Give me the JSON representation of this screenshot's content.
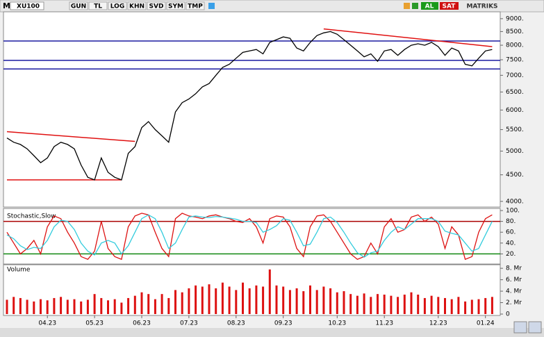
{
  "toolbar": {
    "symbol_prefix": "M",
    "symbol": "XU100",
    "buttons": [
      "GUN",
      "TL",
      "LOG",
      "KHN",
      "SVD",
      "SYM",
      "TMP"
    ],
    "buy": "AL",
    "sell": "SAT",
    "brand": "MATRIKS"
  },
  "chart_data": [
    {
      "type": "line",
      "log_scale": true,
      "categories": [
        null,
        null,
        null,
        null,
        null,
        null,
        "04.23",
        null,
        null,
        null,
        null,
        null,
        null,
        "05.23",
        null,
        null,
        null,
        null,
        null,
        null,
        "06.23",
        null,
        null,
        null,
        null,
        null,
        null,
        "07.23",
        null,
        null,
        null,
        null,
        null,
        null,
        "08.23",
        null,
        null,
        null,
        null,
        null,
        null,
        "09.23",
        null,
        null,
        null,
        null,
        null,
        null,
        null,
        "10.23",
        null,
        null,
        null,
        null,
        null,
        null,
        "11.23",
        null,
        null,
        null,
        null,
        null,
        null,
        null,
        "12.23",
        null,
        null,
        null,
        null,
        null,
        null,
        "01.24",
        null
      ],
      "series": [
        {
          "color": "#000000",
          "values": [
            5300,
            5200,
            5150,
            5050,
            4900,
            4750,
            4850,
            5100,
            5200,
            5150,
            5050,
            4700,
            4450,
            4400,
            4850,
            4550,
            4450,
            4400,
            4950,
            5100,
            5550,
            5700,
            5500,
            5350,
            5200,
            5950,
            6200,
            6300,
            6450,
            6650,
            6750,
            7000,
            7250,
            7350,
            7550,
            7750,
            7800,
            7850,
            7700,
            8100,
            8200,
            8300,
            8250,
            7900,
            7800,
            8100,
            8350,
            8450,
            8500,
            8400,
            8200,
            8000,
            7800,
            7600,
            7700,
            7450,
            7800,
            7850,
            7650,
            7850,
            8000,
            8050,
            8000,
            8100,
            7950,
            7650,
            7900,
            7800,
            7350,
            7300,
            7550,
            7800,
            7850
          ]
        }
      ],
      "ylim": [
        3900,
        9250
      ],
      "yticks": [
        {
          "value": 4000,
          "label": "4000."
        },
        {
          "value": 4500,
          "label": "4500."
        },
        {
          "value": 5000,
          "label": "5000."
        },
        {
          "value": 5500,
          "label": "5500."
        },
        {
          "value": 6000,
          "label": "6000."
        },
        {
          "value": 6500,
          "label": "6500."
        },
        {
          "value": 7000,
          "label": "7000."
        },
        {
          "value": 7500,
          "label": "7500."
        },
        {
          "value": 8000,
          "label": "8000."
        },
        {
          "value": 8500,
          "label": "8500."
        },
        {
          "value": 9000,
          "label": "9000."
        }
      ],
      "levels": [
        {
          "value": 8150,
          "color": "#1a1aa0"
        },
        {
          "value": 7480,
          "color": "#1a1aa0"
        },
        {
          "value": 7200,
          "color": "#1a1aa0"
        }
      ],
      "trendlines": [
        {
          "points": [
            [
              0,
              5450
            ],
            [
              19,
              5220
            ]
          ],
          "color": "#e01010"
        },
        {
          "points": [
            [
              0,
              4400
            ],
            [
              17,
              4400
            ]
          ],
          "color": "#e01010"
        },
        {
          "points": [
            [
              47,
              8600
            ],
            [
              72,
              7950
            ]
          ],
          "color": "#e01010"
        }
      ]
    },
    {
      "type": "line",
      "title": "Stochastic,Slow",
      "series": [
        {
          "color": "#dd1111",
          "values": [
            60,
            40,
            20,
            30,
            45,
            20,
            70,
            90,
            85,
            60,
            40,
            15,
            10,
            25,
            80,
            30,
            15,
            10,
            70,
            90,
            95,
            92,
            60,
            30,
            15,
            85,
            95,
            90,
            88,
            85,
            90,
            92,
            88,
            85,
            80,
            78,
            85,
            70,
            40,
            85,
            90,
            88,
            70,
            30,
            15,
            70,
            90,
            92,
            80,
            60,
            40,
            20,
            10,
            15,
            40,
            20,
            70,
            85,
            60,
            65,
            88,
            92,
            80,
            88,
            75,
            30,
            70,
            55,
            10,
            15,
            60,
            85,
            92
          ]
        },
        {
          "color": "#33ccdd",
          "values": [
            55,
            48,
            35,
            28,
            32,
            30,
            45,
            70,
            82,
            80,
            65,
            40,
            25,
            18,
            40,
            45,
            40,
            20,
            35,
            60,
            85,
            92,
            85,
            60,
            30,
            40,
            65,
            88,
            90,
            88,
            87,
            89,
            88,
            86,
            84,
            80,
            80,
            78,
            60,
            65,
            72,
            85,
            82,
            60,
            35,
            38,
            60,
            85,
            88,
            78,
            60,
            40,
            22,
            14,
            22,
            25,
            45,
            60,
            70,
            65,
            75,
            85,
            85,
            85,
            80,
            62,
            58,
            55,
            40,
            25,
            30,
            55,
            80
          ]
        }
      ],
      "ylim": [
        0,
        100
      ],
      "yticks": [
        {
          "value": 20,
          "label": "20."
        },
        {
          "value": 40,
          "label": "40."
        },
        {
          "value": 60,
          "label": "60."
        },
        {
          "value": 80,
          "label": "80."
        },
        {
          "value": 100,
          "label": "100."
        }
      ],
      "levels": [
        {
          "value": 80,
          "color": "#aa0000"
        },
        {
          "value": 20,
          "color": "#118811"
        }
      ]
    },
    {
      "type": "bar",
      "title": "Volume",
      "color": "#dd1111",
      "values": [
        2.5,
        3,
        2.8,
        2.5,
        2.2,
        2.6,
        2.4,
        2.8,
        3,
        2.5,
        2.6,
        2.2,
        2.5,
        3.5,
        2.8,
        2.4,
        2.6,
        2,
        2.8,
        3.2,
        3.8,
        3.5,
        2.6,
        3.5,
        2.8,
        4.2,
        3.8,
        4.5,
        5,
        4.8,
        5.2,
        4.5,
        5.5,
        4.8,
        4.2,
        5.5,
        4.5,
        5,
        4.8,
        7.8,
        5,
        4.8,
        4.2,
        4.5,
        4,
        5,
        4.2,
        4.8,
        4.5,
        3.8,
        4,
        3.5,
        3.2,
        3.6,
        3,
        3.5,
        3.4,
        3.2,
        3,
        3.4,
        3.8,
        3.4,
        2.8,
        3.2,
        3,
        2.8,
        2.6,
        3,
        2.2,
        2.5,
        2.6,
        2.8,
        3
      ],
      "ylim": [
        0,
        8.5
      ],
      "yticks": [
        0,
        {
          "value": 2,
          "label": "2. Mr"
        },
        {
          "value": 4,
          "label": "4. Mr"
        },
        {
          "value": 6,
          "label": "6. Mr"
        },
        {
          "value": 8,
          "label": "8. Mr"
        }
      ]
    }
  ]
}
